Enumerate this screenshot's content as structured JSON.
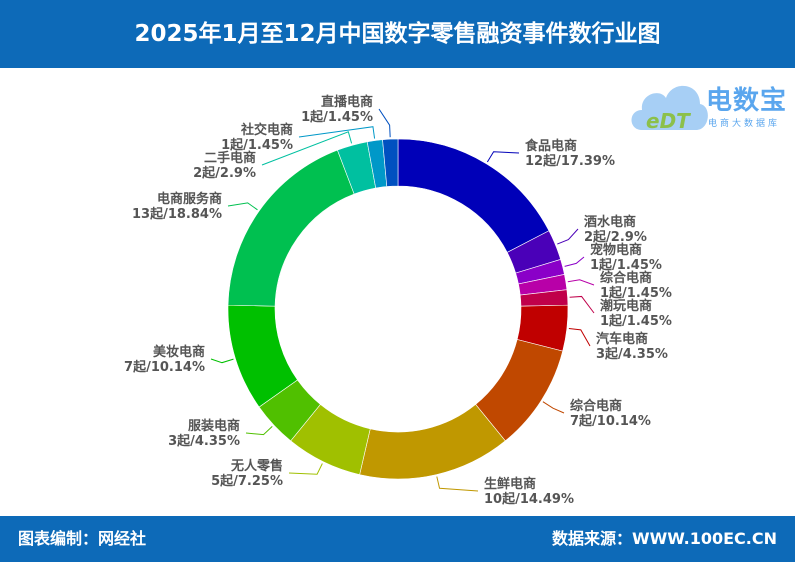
{
  "header": {
    "title": "2025年1月至12月中国数字零售融资事件数行业图"
  },
  "logo": {
    "name": "电数宝",
    "subtitle": "电商大数据库",
    "mark": "eDT"
  },
  "footer": {
    "left": "图表编制：网经社",
    "right": "数据来源：WWW.100EC.CN"
  },
  "chart_data": {
    "type": "pie",
    "donut": true,
    "title": "2025年1月至12月中国数字零售融资事件数行业图",
    "unit": "起",
    "slices": [
      {
        "name": "食品电商",
        "value": 12,
        "percent": 17.39,
        "label": "12起/17.39%",
        "color": "#0000b8"
      },
      {
        "name": "酒水电商",
        "value": 2,
        "percent": 2.9,
        "label": "2起/2.9%",
        "color": "#4a00b8"
      },
      {
        "name": "宠物电商",
        "value": 1,
        "percent": 1.45,
        "label": "1起/1.45%",
        "color": "#8a00c8"
      },
      {
        "name": "综合电商",
        "value": 1,
        "percent": 1.45,
        "label": "1起/1.45%",
        "color": "#b800a8"
      },
      {
        "name": "潮玩电商",
        "value": 1,
        "percent": 1.45,
        "label": "1起/1.45%",
        "color": "#c0004a"
      },
      {
        "name": "汽车电商",
        "value": 3,
        "percent": 4.35,
        "label": "3起/4.35%",
        "color": "#c00000"
      },
      {
        "name": "综合电商",
        "value": 7,
        "percent": 10.14,
        "label": "7起/10.14%",
        "color": "#c04800"
      },
      {
        "name": "生鲜电商",
        "value": 10,
        "percent": 14.49,
        "label": "10起/14.49%",
        "color": "#c09800"
      },
      {
        "name": "无人零售",
        "value": 5,
        "percent": 7.25,
        "label": "5起/7.25%",
        "color": "#a0c000"
      },
      {
        "name": "服装电商",
        "value": 3,
        "percent": 4.35,
        "label": "3起/4.35%",
        "color": "#50c000"
      },
      {
        "name": "美妆电商",
        "value": 7,
        "percent": 10.14,
        "label": "7起/10.14%",
        "color": "#00c000"
      },
      {
        "name": "电商服务商",
        "value": 13,
        "percent": 18.84,
        "label": "13起/18.84%",
        "color": "#00c050"
      },
      {
        "name": "二手电商",
        "value": 2,
        "percent": 2.9,
        "label": "2起/2.9%",
        "color": "#00c0a0"
      },
      {
        "name": "社交电商",
        "value": 1,
        "percent": 1.45,
        "label": "1起/1.45%",
        "color": "#0098c8"
      },
      {
        "name": "直播电商",
        "value": 1,
        "percent": 1.45,
        "label": "1起/1.45%",
        "color": "#0050c0"
      }
    ]
  }
}
